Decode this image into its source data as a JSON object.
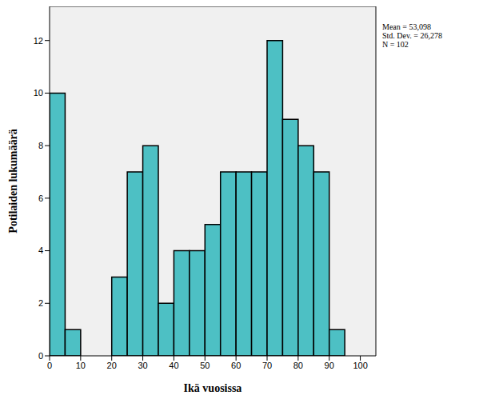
{
  "chart_data": {
    "type": "histogram",
    "x_label": "Ikä vuosissa",
    "y_label": "Potilaiden lukumäärä",
    "annotations": [
      "Mean = 53,098",
      "Std. Dev. = 26,278",
      "N = 102"
    ],
    "bins": [
      0,
      5,
      10,
      15,
      20,
      25,
      30,
      35,
      40,
      45,
      50,
      55,
      60,
      65,
      70,
      75,
      80,
      85,
      90,
      95
    ],
    "values": [
      10,
      1,
      0,
      0,
      3,
      7,
      8,
      2,
      4,
      4,
      5,
      7,
      7,
      7,
      12,
      9,
      8,
      7,
      1
    ],
    "color": "#4dc0c4",
    "xlim": [
      0,
      105
    ],
    "xticks": [
      0,
      10,
      20,
      30,
      40,
      50,
      60,
      70,
      80,
      90,
      100
    ],
    "ylim": [
      0,
      13.3
    ],
    "yticks": [
      0,
      2,
      4,
      6,
      8,
      10,
      12
    ],
    "grid": false
  }
}
